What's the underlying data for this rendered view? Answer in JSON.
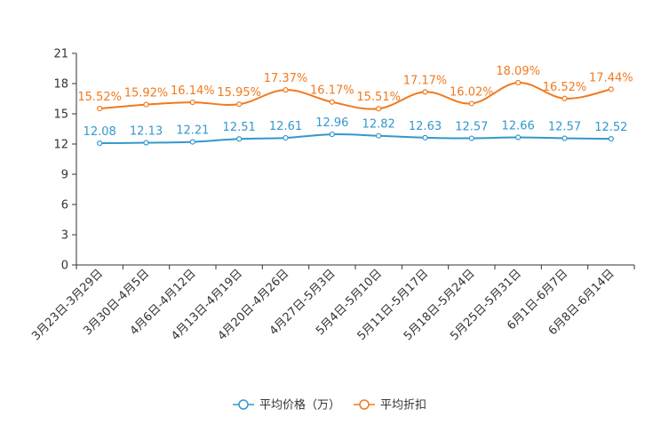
{
  "chart_data": {
    "type": "line",
    "title": "",
    "xlabel": "",
    "ylabel": "",
    "ylim": [
      0,
      21
    ],
    "yticks": [
      0,
      3,
      6,
      9,
      12,
      15,
      18,
      21
    ],
    "categories": [
      "3月23日-3月29日",
      "3月30日-4月5日",
      "4月6日-4月12日",
      "4月13日-4月19日",
      "4月20日-4月26日",
      "4月27日-5月3日",
      "5月4日-5月10日",
      "5月11日-5月17日",
      "5月18日-5月24日",
      "5月25日-5月31日",
      "6月1日-6月7日",
      "6月8日-6月14日"
    ],
    "series": [
      {
        "name": "平均价格（万）",
        "color": "#3398cc",
        "values": [
          12.08,
          12.13,
          12.21,
          12.51,
          12.61,
          12.96,
          12.82,
          12.63,
          12.57,
          12.66,
          12.57,
          12.52
        ],
        "labels": [
          "12.08",
          "12.13",
          "12.21",
          "12.51",
          "12.61",
          "12.96",
          "12.82",
          "12.63",
          "12.57",
          "12.66",
          "12.57",
          "12.52"
        ]
      },
      {
        "name": "平均折扣",
        "color": "#f07a1f",
        "values": [
          15.52,
          15.92,
          16.14,
          15.95,
          17.37,
          16.17,
          15.51,
          17.17,
          16.02,
          18.09,
          16.52,
          17.44
        ],
        "labels": [
          "15.52%",
          "15.92%",
          "16.14%",
          "15.95%",
          "17.37%",
          "16.17%",
          "15.51%",
          "17.17%",
          "16.02%",
          "18.09%",
          "16.52%",
          "17.44%"
        ]
      }
    ],
    "legend_position": "bottom-center"
  }
}
